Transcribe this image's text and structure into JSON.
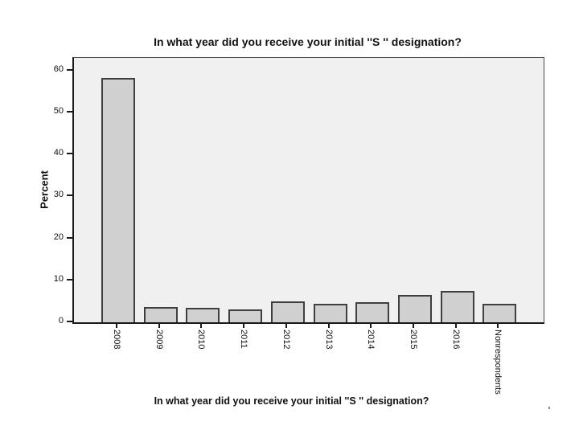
{
  "chart_data": {
    "type": "bar",
    "title": "In what year did you receive your initial ''S '' designation?",
    "xlabel": "In what year did you receive your initial ''S '' designation?",
    "ylabel": "Percent",
    "categories": [
      "2008",
      "2009",
      "2010",
      "2011",
      "2012",
      "2013",
      "2014",
      "2015",
      "2016",
      "Nonrespondents"
    ],
    "values": [
      58.2,
      3.7,
      3.4,
      3.0,
      4.9,
      4.5,
      4.8,
      6.6,
      7.5,
      4.4
    ],
    "ylim": [
      0,
      63
    ],
    "yticks": [
      0,
      10,
      20,
      30,
      40,
      50,
      60
    ],
    "grid": false,
    "legend": null
  },
  "colors": {
    "page_background": "#ffffff",
    "plot_background": "#f0f0f0",
    "bar_fill": "#d0d0d0",
    "bar_border": "#3f3f3f",
    "axis": "#1a1a1a",
    "text": "#111111",
    "stray_mark": "#8a8a8a"
  }
}
